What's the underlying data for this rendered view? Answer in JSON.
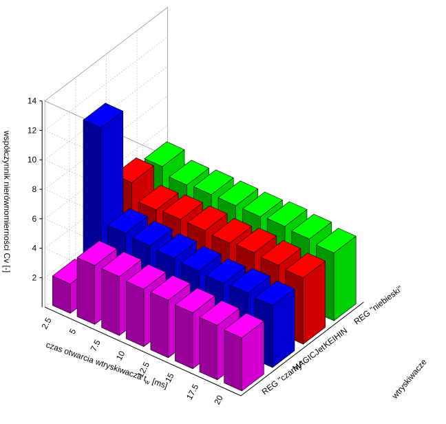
{
  "chart_data": {
    "type": "bar3d",
    "title": "",
    "zlabel": "współczynnik nierównomierności Cv [-]",
    "xlabel": "czas otwarcia wtryskiwacza",
    "xlabel_sub": "w",
    "xlabel_unit": "[ms]",
    "ylabel": "wtryskiwacze",
    "zlim": [
      0,
      14
    ],
    "z_ticks": [
      "2",
      "4",
      "6",
      "8",
      "10",
      "12",
      "14"
    ],
    "x_categories": [
      "20",
      "17.5",
      "15",
      "12.5",
      "10",
      "7.5",
      "5",
      "2.5"
    ],
    "injectors": [
      "REG \"czarny\"",
      "MAGICJet",
      "KEIHIN",
      "REG \"niebieski\""
    ],
    "series": [
      {
        "name": "REG \"czarny\"",
        "color": "#ff00ff",
        "values": [
          3.6,
          3.7,
          3.8,
          3.9,
          3.9,
          4.0,
          4.0,
          2.0
        ]
      },
      {
        "name": "MAGICJet",
        "color": "#0000ff",
        "values": [
          4.2,
          4.3,
          4.2,
          4.3,
          4.4,
          4.5,
          4.6,
          11.0
        ]
      },
      {
        "name": "KEIHIN",
        "color": "#ff0000",
        "values": [
          4.5,
          4.6,
          4.7,
          4.6,
          4.7,
          4.7,
          4.6,
          5.7
        ]
      },
      {
        "name": "REG \"niebieski\"",
        "color": "#00ff00",
        "values": [
          4.6,
          4.8,
          4.9,
          4.8,
          4.8,
          4.8,
          4.7,
          5.2
        ]
      }
    ],
    "grid": true
  }
}
